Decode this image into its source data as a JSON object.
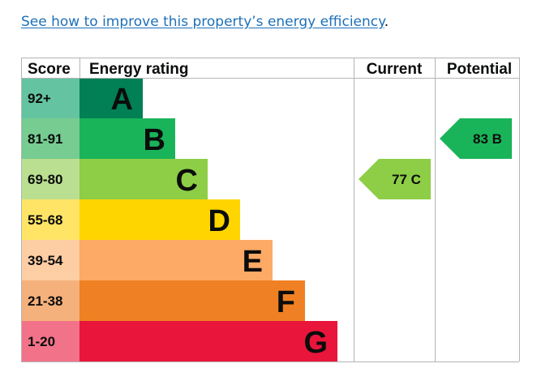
{
  "link": {
    "text": "See how to improve this property’s energy efficiency",
    "suffix": "."
  },
  "chart_data": {
    "type": "table",
    "headers": {
      "score": "Score",
      "rating": "Energy rating",
      "current": "Current",
      "potential": "Potential"
    },
    "bands": [
      {
        "letter": "A",
        "range": "92+",
        "color": "#008054",
        "score_color": "#64c4a1"
      },
      {
        "letter": "B",
        "range": "81-91",
        "color": "#19b459",
        "score_color": "#76cc91"
      },
      {
        "letter": "C",
        "range": "69-80",
        "color": "#8dce46",
        "score_color": "#badf90"
      },
      {
        "letter": "D",
        "range": "55-68",
        "color": "#ffd500",
        "score_color": "#ffe466"
      },
      {
        "letter": "E",
        "range": "39-54",
        "color": "#fcaa65",
        "score_color": "#fdcda3"
      },
      {
        "letter": "F",
        "range": "21-38",
        "color": "#ef8023",
        "score_color": "#f5b17b"
      },
      {
        "letter": "G",
        "range": "1-20",
        "color": "#e9153b",
        "score_color": "#f27389"
      }
    ],
    "current": {
      "value": 77,
      "band": "C",
      "label": "77 C",
      "color": "#8dce46"
    },
    "potential": {
      "value": 83,
      "band": "B",
      "label": "83 B",
      "color": "#19b459"
    }
  }
}
